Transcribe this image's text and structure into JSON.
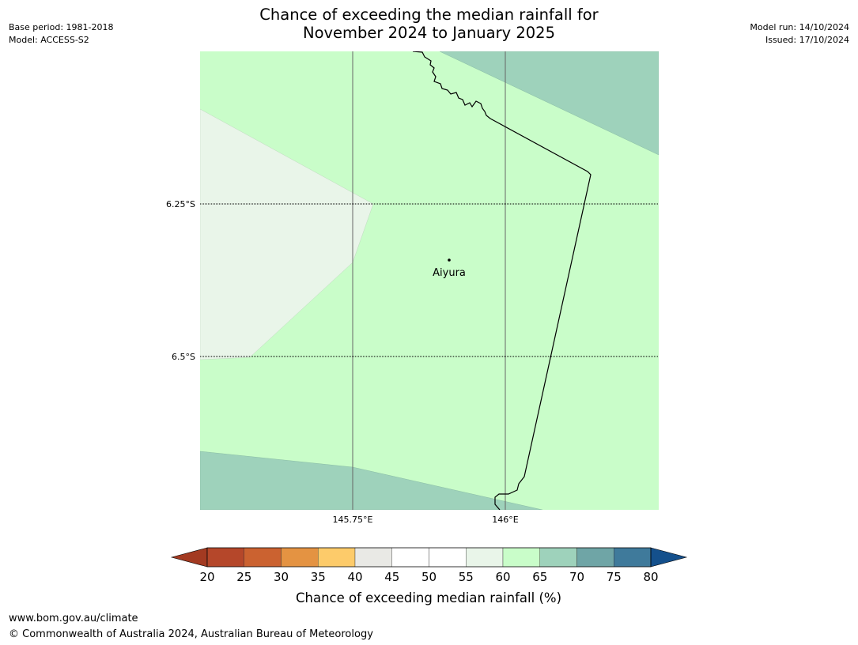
{
  "header": {
    "title_line1": "Chance of exceeding the median rainfall for",
    "title_line2": "November 2024 to January 2025",
    "base_period": "Base period: 1981-2018",
    "model": "Model: ACCESS-S2",
    "model_run": "Model run: 14/10/2024",
    "issued": "Issued: 17/10/2024"
  },
  "map": {
    "background_color": "#c9fdc9",
    "gridlines": {
      "latitudes": [
        "6.25°S",
        "6.5°S"
      ],
      "longitudes": [
        "145.75°E",
        "146°E"
      ]
    },
    "place_label": "Aiyura",
    "region_colors": {
      "55-60": "#e9f5e9",
      "60-65": "#c9fdc9",
      "65-70": "#9ed2bb"
    }
  },
  "legend": {
    "ticks": [
      "20",
      "25",
      "30",
      "35",
      "40",
      "45",
      "50",
      "55",
      "60",
      "65",
      "70",
      "75",
      "80"
    ],
    "colors": [
      "#a33a21",
      "#b5472a",
      "#cb6230",
      "#e49342",
      "#fdcb6a",
      "#e9e9e5",
      "#ffffff",
      "#ffffff",
      "#e9f5e9",
      "#c9fdc9",
      "#9ed2bb",
      "#6fa5a6",
      "#3f7a9b",
      "#14508c"
    ],
    "label": "Chance of exceeding median rainfall (%)"
  },
  "footer": {
    "url": "www.bom.gov.au/climate",
    "copyright": "© Commonwealth of Australia 2024, Australian Bureau of Meteorology"
  }
}
